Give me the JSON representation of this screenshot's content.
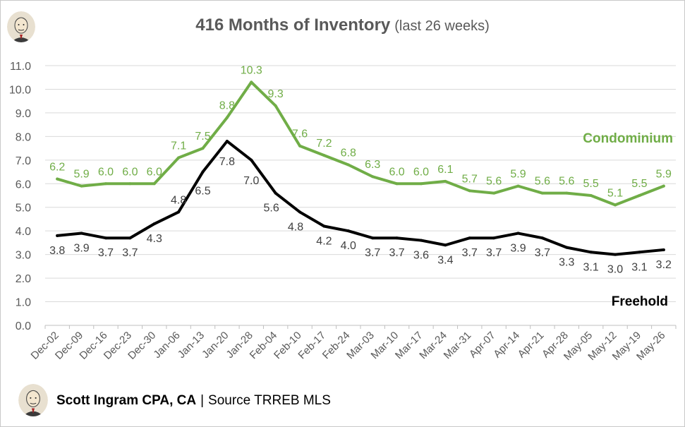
{
  "header": {
    "title_main": "416 Months of Inventory",
    "title_sub": "(last 26 weeks)"
  },
  "footer": {
    "author": "Scott Ingram CPA, CA",
    "separator": "|",
    "source": "Source TRREB MLS"
  },
  "colors": {
    "condominium": "#70ad47",
    "freehold": "#000000",
    "gridline": "#d9d9d9",
    "axis_text": "#595959"
  },
  "chart_data": {
    "type": "line",
    "title": "416 Months of Inventory (last 26 weeks)",
    "xlabel": "",
    "ylabel": "",
    "ylim": [
      0,
      11
    ],
    "yticks": [
      "0.0",
      "1.0",
      "2.0",
      "3.0",
      "4.0",
      "5.0",
      "6.0",
      "7.0",
      "8.0",
      "9.0",
      "10.0",
      "11.0"
    ],
    "grid": true,
    "categories": [
      "Dec-02",
      "Dec-09",
      "Dec-16",
      "Dec-23",
      "Dec-30",
      "Jan-06",
      "Jan-13",
      "Jan-20",
      "Jan-28",
      "Feb-04",
      "Feb-10",
      "Feb-17",
      "Feb-24",
      "Mar-03",
      "Mar-10",
      "Mar-17",
      "Mar-24",
      "Mar-31",
      "Apr-07",
      "Apr-14",
      "Apr-21",
      "Apr-28",
      "May-05",
      "May-12",
      "May-19",
      "May-26"
    ],
    "series": [
      {
        "name": "Condominium",
        "color": "#70ad47",
        "values": [
          6.2,
          5.9,
          6.0,
          6.0,
          6.0,
          7.1,
          7.5,
          8.8,
          10.3,
          9.3,
          7.6,
          7.2,
          6.8,
          6.3,
          6.0,
          6.0,
          6.1,
          5.7,
          5.6,
          5.9,
          5.6,
          5.6,
          5.5,
          5.1,
          5.5,
          5.9
        ],
        "labels": [
          "6.2",
          "5.9",
          "6.0",
          "6.0",
          "6.0",
          "7.1",
          "7.5",
          "8.8",
          "10.3",
          "9.3",
          "7.6",
          "7.2",
          "6.8",
          "6.3",
          "6.0",
          "6.0",
          "6.1",
          "5.7",
          "5.6",
          "5.9",
          "5.6",
          "5.6",
          "5.5",
          "5.1",
          "5.5",
          "5.9"
        ]
      },
      {
        "name": "Freehold",
        "color": "#000000",
        "values": [
          3.8,
          3.9,
          3.7,
          3.7,
          4.3,
          4.8,
          6.5,
          7.8,
          7.0,
          5.6,
          4.8,
          4.2,
          4.0,
          3.7,
          3.7,
          3.6,
          3.4,
          3.7,
          3.7,
          3.9,
          3.7,
          3.3,
          3.1,
          3.0,
          3.1,
          3.2
        ],
        "labels": [
          "3.8",
          "3.9",
          "3.7",
          "3.7",
          "4.3",
          "4.8",
          "6.5",
          "7.8",
          "7.0",
          "5.6",
          "4.8",
          "4.2",
          "4.0",
          "3.7",
          "3.7",
          "3.6",
          "3.4",
          "3.7",
          "3.7",
          "3.9",
          "3.7",
          "3.3",
          "3.1",
          "3.0",
          "3.1",
          "3.2"
        ]
      }
    ]
  }
}
